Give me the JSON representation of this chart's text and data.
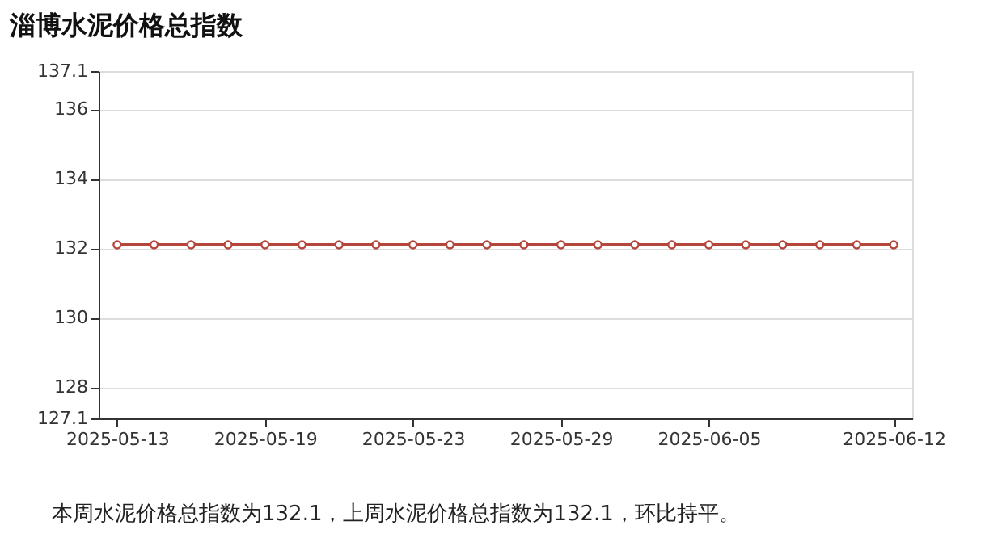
{
  "chart_data": {
    "type": "line",
    "title": "淄博水泥价格总指数",
    "categories": [
      "2025-05-13",
      null,
      null,
      null,
      "2025-05-19",
      null,
      null,
      null,
      "2025-05-23",
      null,
      null,
      null,
      "2025-05-29",
      null,
      null,
      null,
      "2025-06-05",
      null,
      null,
      null,
      null,
      "2025-06-12"
    ],
    "series": [
      {
        "color": "#b5463c",
        "values": [
          132.1,
          132.1,
          132.1,
          132.1,
          132.1,
          132.1,
          132.1,
          132.1,
          132.1,
          132.1,
          132.1,
          132.1,
          132.1,
          132.1,
          132.1,
          132.1,
          132.1,
          132.1,
          132.1,
          132.1,
          132.1,
          132.1
        ]
      }
    ],
    "ylim": [
      127.1,
      137.1
    ],
    "yticks": [
      127.1,
      128,
      130,
      132,
      134,
      136,
      137.1
    ],
    "grid": "y",
    "legend": false,
    "marker": "circle",
    "line_style": "solid",
    "annotations": [
      "本周水泥价格总指数为132.1，上周水泥价格总指数为132.1，环比持平。"
    ]
  }
}
